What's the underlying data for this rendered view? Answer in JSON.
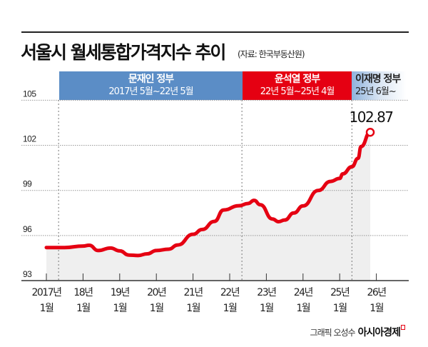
{
  "title": "서울시 월세통합가격지수 추이",
  "source": "(자료: 한국부동산원)",
  "credit": {
    "text": "그래픽 오성수",
    "logo": "아시아경제"
  },
  "colors": {
    "line": "#e50012",
    "fill": "#efefef",
    "moon": "#5b8dc6",
    "yoon": "#e50012",
    "lee": "#8fb3dd"
  },
  "periods": [
    {
      "name": "문재인 정부",
      "range": "2017년 5월~22년 5월",
      "start": "2017-05",
      "end": "2022-05"
    },
    {
      "name": "윤석열 정부",
      "range": "22년 5월~25년 4월",
      "start": "2022-05",
      "end": "2025-04"
    },
    {
      "name": "이재명 정부",
      "range": "25년 6월~",
      "start": "2025-06"
    }
  ],
  "chart_data": {
    "type": "area",
    "title": "서울시 월세통합가격지수 추이",
    "xlabel": "",
    "ylabel": "",
    "ylim": [
      93,
      105
    ],
    "yticks": [
      93,
      96,
      99,
      102,
      105
    ],
    "xticks": [
      {
        "date": "2017-01",
        "line1": "2017년",
        "line2": "1월"
      },
      {
        "date": "2018-01",
        "line1": "18년",
        "line2": "1월"
      },
      {
        "date": "2019-01",
        "line1": "19년",
        "line2": "1월"
      },
      {
        "date": "2020-01",
        "line1": "20년",
        "line2": "1월"
      },
      {
        "date": "2021-01",
        "line1": "21년",
        "line2": "1월"
      },
      {
        "date": "2022-01",
        "line1": "22년",
        "line2": "1월"
      },
      {
        "date": "2023-01",
        "line1": "23년",
        "line2": "1월"
      },
      {
        "date": "2024-01",
        "line1": "24년",
        "line2": "1월"
      },
      {
        "date": "2025-01",
        "line1": "25년",
        "line2": "1월"
      },
      {
        "date": "2026-01",
        "line1": "26년",
        "line2": "1월"
      }
    ],
    "grid": true,
    "series": [
      {
        "x": [
          "2017-01",
          "2017-07",
          "2018-01",
          "2018-03",
          "2018-06",
          "2018-10",
          "2019-01",
          "2019-04",
          "2019-07",
          "2019-10",
          "2020-01",
          "2020-05",
          "2020-08",
          "2021-01",
          "2021-04",
          "2021-08",
          "2021-11",
          "2022-04",
          "2022-07",
          "2022-09",
          "2022-11",
          "2023-03",
          "2023-05",
          "2023-07",
          "2023-10",
          "2024-01",
          "2024-06",
          "2024-10",
          "2025-01",
          "2025-02",
          "2025-05",
          "2025-07",
          "2025-08",
          "2025-11"
        ],
        "y": [
          95.2,
          95.2,
          95.3,
          95.35,
          95.0,
          95.17,
          94.98,
          94.7,
          94.67,
          94.78,
          95.0,
          95.09,
          95.37,
          96.08,
          96.4,
          96.94,
          97.7,
          97.98,
          98.13,
          98.34,
          98.05,
          97.1,
          96.92,
          97.03,
          97.5,
          97.97,
          99.0,
          99.6,
          99.8,
          100.1,
          100.58,
          101.13,
          101.92,
          102.87
        ]
      }
    ],
    "annotations": [
      {
        "date": "2025-11",
        "value": 102.87,
        "label": "102.87"
      }
    ]
  }
}
